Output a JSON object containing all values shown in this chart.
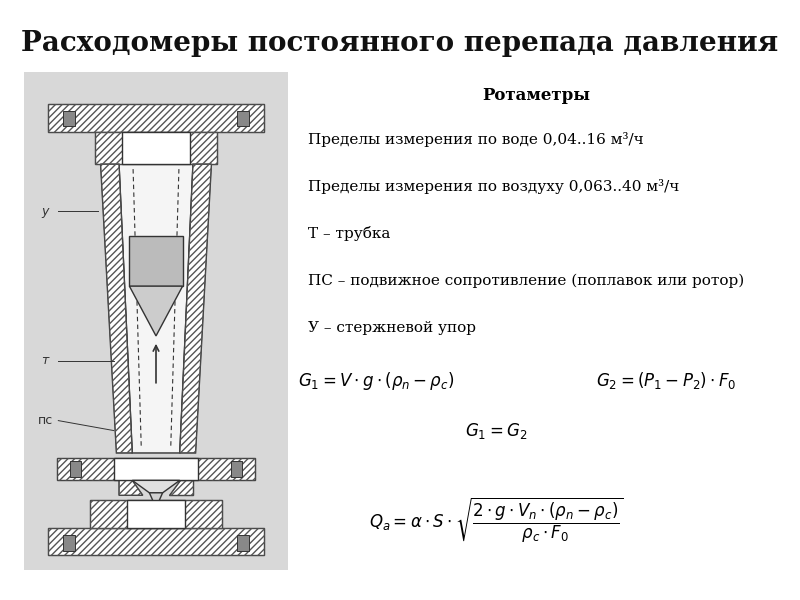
{
  "title": "Расходомеры постоянного перепада давления",
  "subtitle": "Ротаметры",
  "text_lines": [
    "Пределы измерения по воде 0,04..16 м³/ч",
    "Пределы измерения по воздуху 0,063..40 м³/ч",
    "Т – трубка",
    "ПС – подвижное сопротивление (поплавок или ротор)",
    "У – стержневой упор"
  ],
  "bg_color": "#ffffff",
  "title_fontsize": 20,
  "subtitle_fontsize": 12,
  "text_fontsize": 11,
  "diagram_bg": "#e8e8e8",
  "line_color": "#333333",
  "hatch_color": "#555555"
}
